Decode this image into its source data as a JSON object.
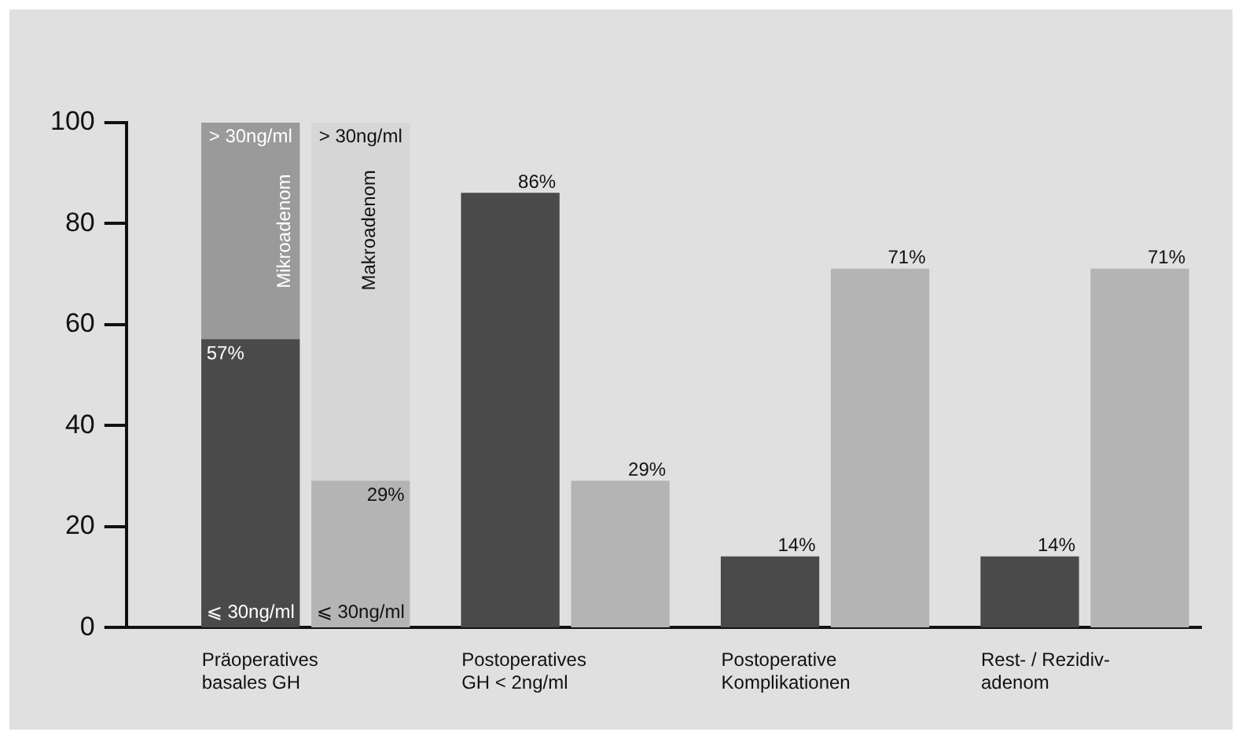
{
  "chart_data": {
    "type": "bar",
    "stacked": true,
    "categories": [
      "Präoperatives\nbasales GH",
      null,
      "Postoperatives\nGH < 2ng/ml",
      null,
      "Postoperative\nKomplikationen",
      null,
      "Rest- / Rezidiv-\nadenom",
      null
    ],
    "ylim": [
      0,
      100
    ],
    "yticks": [
      0,
      20,
      40,
      60,
      80,
      100
    ],
    "grid": false,
    "legend": false,
    "series": [
      {
        "colors": [
          "#4a4a4a",
          "#b4b4b4",
          "#4a4a4a",
          "#b4b4b4",
          "#4a4a4a",
          "#b4b4b4",
          "#4a4a4a",
          "#b4b4b4"
        ],
        "values": [
          57,
          29,
          86,
          29,
          14,
          71,
          14,
          71
        ],
        "value_labels": [
          "57%",
          "29%",
          "86%",
          "29%",
          "14%",
          "71%",
          "14%",
          "71%"
        ]
      },
      {
        "colors": [
          "#9a9a9a",
          "#d6d6d6",
          "#9a9a9a",
          "#d6d6d6",
          "#9a9a9a",
          "#d6d6d6",
          "#9a9a9a",
          "#d6d6d6"
        ],
        "values": [
          43,
          71,
          null,
          null,
          null,
          null,
          null,
          null
        ]
      }
    ],
    "annotations": [
      "> 30ng/ml",
      "> 30ng/ml",
      "Mikroadenom",
      "Makroadenom",
      "⩽ 30ng/ml",
      "⩽ 30ng/ml"
    ]
  }
}
